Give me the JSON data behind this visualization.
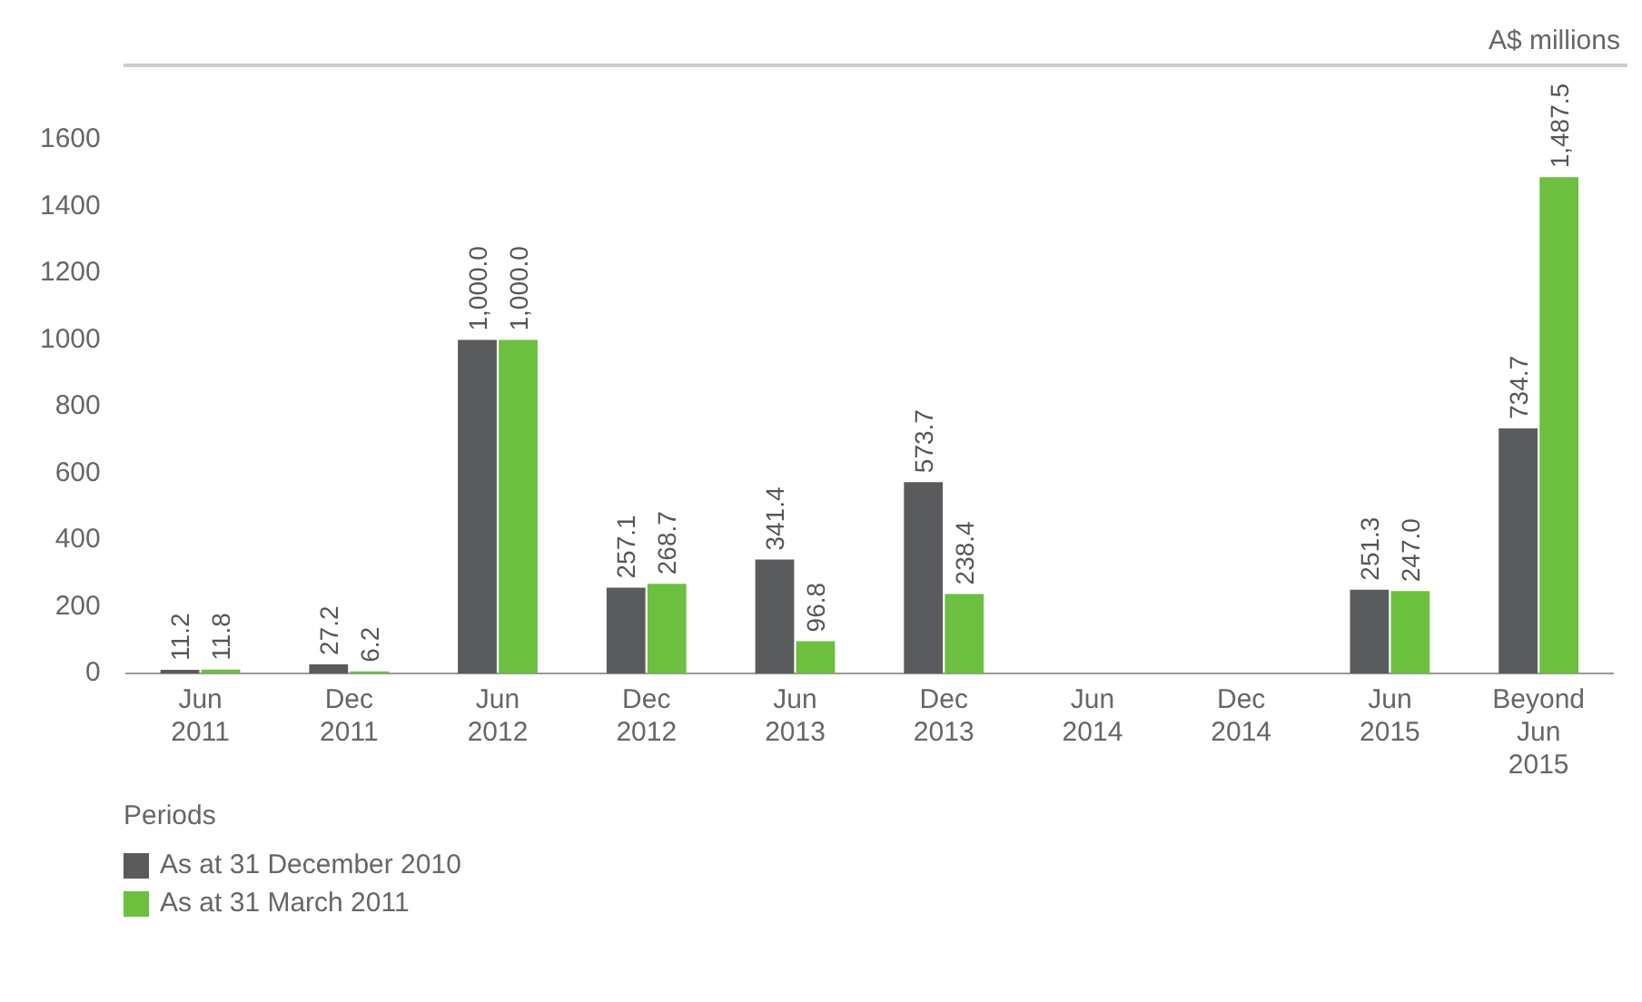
{
  "chart_data": {
    "type": "bar",
    "ylabel": "A$ millions",
    "xlabel": "Periods",
    "categories": [
      "Jun 2011",
      "Dec 2011",
      "Jun 2012",
      "Dec 2012",
      "Jun 2013",
      "Dec 2013",
      "Jun 2014",
      "Dec 2014",
      "Jun 2015",
      "Beyond Jun 2015"
    ],
    "series": [
      {
        "name": "As at 31 December 2010",
        "color": "#5a5b5d",
        "values": [
          11.2,
          27.2,
          1000.0,
          257.1,
          341.4,
          573.7,
          null,
          null,
          251.3,
          734.7
        ],
        "value_labels": [
          "11.2",
          "27.2",
          "1,000.0",
          "257.1",
          "341.4",
          "573.7",
          null,
          null,
          "251.3",
          "734.7"
        ]
      },
      {
        "name": "As at 31 March 2011",
        "color": "#6cbf3f",
        "values": [
          11.8,
          6.2,
          1000.0,
          268.7,
          96.8,
          238.4,
          null,
          null,
          247.0,
          1487.5
        ],
        "value_labels": [
          "11.8",
          "6.2",
          "1,000.0",
          "268.7",
          "96.8",
          "238.4",
          null,
          null,
          "247.0",
          "1,487.5"
        ]
      }
    ],
    "ylim": [
      0,
      1600
    ],
    "yticks": [
      0,
      200,
      400,
      600,
      800,
      1000,
      1200,
      1400,
      1600
    ],
    "grid": false,
    "legend": "bottom left"
  }
}
